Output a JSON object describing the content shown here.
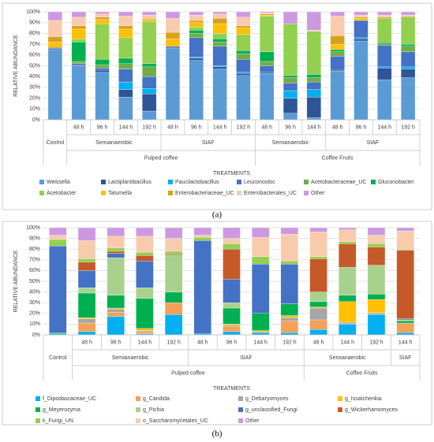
{
  "chart_data": [
    {
      "type": "stacked_bar",
      "caption": "(a)",
      "ylabel": "RELATIVE ABUNDANCE",
      "xlabel": "TREATMENTS",
      "ylim": [
        0,
        100
      ],
      "yticks": [
        {
          "value": 0,
          "label": "0%"
        },
        {
          "value": 10,
          "label": "10%"
        },
        {
          "value": 20,
          "label": "20%"
        },
        {
          "value": 30,
          "label": "30%"
        },
        {
          "value": 40,
          "label": "40%"
        },
        {
          "value": 50,
          "label": "50%"
        },
        {
          "value": 60,
          "label": "60%"
        },
        {
          "value": 70,
          "label": "70%"
        },
        {
          "value": 80,
          "label": "80%"
        },
        {
          "value": 90,
          "label": "90%"
        },
        {
          "value": 100,
          "label": "100%"
        }
      ],
      "grid": true,
      "categories": [
        [
          "Control",
          null,
          null
        ],
        [
          "48 h",
          "Semianaerobic",
          "Pulped coffee"
        ],
        [
          "96 h",
          "Semianaerobic",
          "Pulped coffee"
        ],
        [
          "144 h",
          "Semianaerobic",
          "Pulped coffee"
        ],
        [
          "192 h",
          "Semianaerobic",
          "Pulped coffee"
        ],
        [
          "48 h",
          "SIAF",
          "Pulped coffee"
        ],
        [
          "96 h",
          "SIAF",
          "Pulped coffee"
        ],
        [
          "144 h",
          "SIAF",
          "Pulped coffee"
        ],
        [
          "192 h",
          "SIAF",
          "Pulped coffee"
        ],
        [
          "48 h",
          "Semianaerobic",
          "Coffee Fruits"
        ],
        [
          "96 h",
          "Semianaerobic",
          "Coffee Fruits"
        ],
        [
          "144 h",
          "Semianaerobic",
          "Coffee Fruits"
        ],
        [
          "48 h",
          "SIAF",
          "Coffee Fruits"
        ],
        [
          "96 h",
          "SIAF",
          "Coffee Fruits"
        ],
        [
          "144 h",
          "SIAF",
          "Coffee Fruits"
        ],
        [
          "192 h",
          "SIAF",
          "Coffee Fruits"
        ]
      ],
      "series": [
        {
          "name": "Weissella",
          "color": "#5b9bd5",
          "values": [
            65,
            50,
            44,
            21,
            8,
            66,
            55,
            47,
            41,
            43,
            6,
            2,
            45,
            73,
            37,
            39
          ]
        },
        {
          "name": "Lactiplantibacillus",
          "color": "#2f5597",
          "values": [
            1,
            1,
            2,
            7,
            16,
            1,
            2,
            2,
            2,
            1,
            14,
            19,
            1,
            2,
            11,
            8
          ]
        },
        {
          "name": "Paucilactobacillus",
          "color": "#00b0f0",
          "values": [
            0,
            0,
            0,
            7,
            5,
            0,
            1,
            1,
            1,
            0,
            7,
            7,
            0,
            1,
            1,
            2
          ]
        },
        {
          "name": "Leuconostoc",
          "color": "#4472c4",
          "values": [
            1,
            1,
            2,
            12,
            11,
            1,
            18,
            18,
            12,
            6,
            7,
            7,
            13,
            16,
            20,
            14
          ]
        },
        {
          "name": "Acetobacteraceae_UC",
          "color": "#70ad47",
          "values": [
            0,
            2,
            3,
            5,
            9,
            0,
            4,
            4,
            5,
            4,
            5,
            4,
            4,
            0,
            2,
            5
          ]
        },
        {
          "name": "Gluconobacter",
          "color": "#00b050",
          "values": [
            0,
            18,
            5,
            5,
            3,
            0,
            3,
            3,
            3,
            9,
            2,
            3,
            2,
            0,
            1,
            2
          ]
        },
        {
          "name": "Acetobacter",
          "color": "#92d050",
          "values": [
            0,
            3,
            33,
            19,
            39,
            0,
            3,
            5,
            15,
            33,
            48,
            40,
            0,
            0,
            22,
            25
          ]
        },
        {
          "name": "Tatumella",
          "color": "#ffc000",
          "values": [
            5,
            9,
            4,
            8,
            2,
            7,
            4,
            9,
            6,
            1,
            0,
            0,
            5,
            2,
            0,
            0
          ]
        },
        {
          "name": "Enterobacteriaceae_UC",
          "color": "#d6a21e",
          "values": [
            5,
            3,
            2,
            3,
            1,
            6,
            2,
            5,
            2,
            1,
            0,
            0,
            8,
            1,
            1,
            1
          ]
        },
        {
          "name": "Enterobacterales_UC",
          "color": "#f8cbad",
          "values": [
            15,
            8,
            3,
            9,
            3,
            13,
            5,
            4,
            8,
            1,
            0,
            1,
            18,
            2,
            2,
            1
          ]
        },
        {
          "name": "Other",
          "color": "#cc99e0",
          "values": [
            8,
            5,
            2,
            4,
            3,
            6,
            3,
            2,
            5,
            1,
            11,
            17,
            4,
            3,
            3,
            3
          ]
        }
      ]
    },
    {
      "type": "stacked_bar",
      "caption": "(b)",
      "ylabel": "RELATIVE ABUNDANCE",
      "xlabel": "TREATMENTS",
      "ylim": [
        0,
        100
      ],
      "yticks": [
        {
          "value": 0,
          "label": "0%"
        },
        {
          "value": 10,
          "label": "10%"
        },
        {
          "value": 20,
          "label": "20%"
        },
        {
          "value": 30,
          "label": "30%"
        },
        {
          "value": 40,
          "label": "40%"
        },
        {
          "value": 50,
          "label": "50%"
        },
        {
          "value": 60,
          "label": "60%"
        },
        {
          "value": 70,
          "label": "70%"
        },
        {
          "value": 80,
          "label": "80%"
        },
        {
          "value": 90,
          "label": "90%"
        },
        {
          "value": 100,
          "label": "100%"
        }
      ],
      "grid": true,
      "categories": [
        [
          "Control",
          null,
          null
        ],
        [
          "48 h",
          "Semianaerobic",
          "Pulped coffee"
        ],
        [
          "96 h",
          "Semianaerobic",
          "Pulped coffee"
        ],
        [
          "144 h",
          "Semianaerobic",
          "Pulped coffee"
        ],
        [
          "192 h",
          "Semianaerobic",
          "Pulped coffee"
        ],
        [
          "48 h",
          "SIAF",
          "Pulped coffee"
        ],
        [
          "96 h",
          "SIAF",
          "Pulped coffee"
        ],
        [
          "144 h",
          "SIAF",
          "Pulped coffee"
        ],
        [
          "192 h",
          "SIAF",
          "Pulped coffee"
        ],
        [
          "48 h",
          "Semianaerobic",
          "Coffee Fruits"
        ],
        [
          "144 h",
          "Semianaerobic",
          "Coffee Fruits"
        ],
        [
          "192 h",
          "Semianaerobic",
          "Coffee Fruits"
        ],
        [
          "144 h",
          "SIAF",
          "Coffee Fruits"
        ]
      ],
      "series": [
        {
          "name": "f_Dipodascaceae_UC",
          "color": "#00b0f0",
          "values": [
            1,
            3,
            17,
            1,
            19,
            1,
            3,
            2,
            2,
            5,
            10,
            19,
            2
          ]
        },
        {
          "name": "g_Candida",
          "color": "#f4a05a",
          "values": [
            0,
            8,
            4,
            2,
            11,
            0,
            5,
            1,
            11,
            9,
            1,
            1,
            9
          ]
        },
        {
          "name": "g_Debaryomyces",
          "color": "#a6a6a6",
          "values": [
            0,
            4,
            3,
            1,
            0,
            0,
            1,
            0,
            3,
            11,
            1,
            1,
            0
          ]
        },
        {
          "name": "g_Issatchenkia",
          "color": "#ffc000",
          "values": [
            0,
            1,
            1,
            2,
            0,
            0,
            1,
            1,
            2,
            1,
            19,
            12,
            0
          ]
        },
        {
          "name": "g_Meyerozyma",
          "color": "#00b050",
          "values": [
            1,
            23,
            12,
            28,
            10,
            0,
            15,
            16,
            11,
            5,
            6,
            5,
            2
          ]
        },
        {
          "name": "g_Pichia",
          "color": "#a9d18e",
          "values": [
            0,
            5,
            35,
            10,
            34,
            0,
            5,
            0,
            0,
            9,
            26,
            27,
            1
          ]
        },
        {
          "name": "g_unclassified_Fungi",
          "color": "#4472c4",
          "values": [
            81,
            16,
            4,
            25,
            0,
            87,
            22,
            46,
            37,
            0,
            0,
            0,
            1
          ]
        },
        {
          "name": "g_Wickerhamomyces",
          "color": "#c55a28",
          "values": [
            0,
            8,
            2,
            5,
            1,
            0,
            28,
            0,
            0,
            31,
            22,
            17,
            64
          ]
        },
        {
          "name": "k_Fungi_UN",
          "color": "#92d050",
          "values": [
            6,
            3,
            3,
            3,
            3,
            3,
            5,
            7,
            3,
            2,
            2,
            3,
            1
          ]
        },
        {
          "name": "o_Saccharomycetales_UC",
          "color": "#f8cbad",
          "values": [
            4,
            17,
            11,
            15,
            12,
            2,
            5,
            18,
            25,
            23,
            11,
            8,
            17
          ]
        },
        {
          "name": "Other",
          "color": "#cc99e0",
          "values": [
            7,
            12,
            8,
            8,
            10,
            7,
            10,
            9,
            6,
            4,
            2,
            7,
            3
          ]
        }
      ]
    }
  ]
}
